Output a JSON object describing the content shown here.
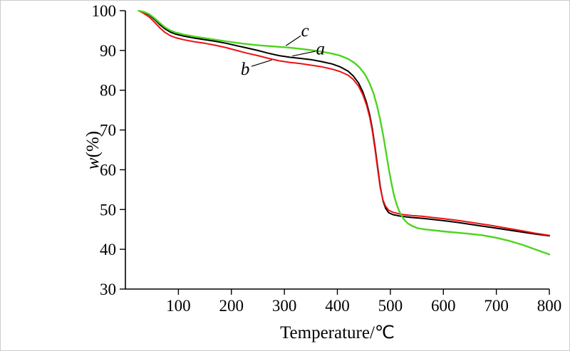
{
  "figure": {
    "background": "#ffffff",
    "border_color": "#cccccc"
  },
  "chart_data": {
    "type": "line",
    "title": "",
    "xlabel": "Temperature/℃",
    "ylabel_italic": "w",
    "ylabel_rest": "(%)",
    "xlim": [
      0,
      800
    ],
    "ylim": [
      30,
      100
    ],
    "xticks": [
      100,
      200,
      300,
      400,
      500,
      600,
      700,
      800
    ],
    "yticks": [
      30,
      40,
      50,
      60,
      70,
      80,
      90,
      100
    ],
    "grid": false,
    "legend_position": "inline-annotations",
    "axis_color": "#000000",
    "series": [
      {
        "name": "a",
        "color": "#000000",
        "width": 2,
        "points": [
          [
            25,
            100
          ],
          [
            35,
            99.6
          ],
          [
            45,
            98.9
          ],
          [
            55,
            97.8
          ],
          [
            65,
            96.5
          ],
          [
            75,
            95.4
          ],
          [
            85,
            94.6
          ],
          [
            95,
            94.1
          ],
          [
            110,
            93.6
          ],
          [
            130,
            93.1
          ],
          [
            150,
            92.7
          ],
          [
            170,
            92.3
          ],
          [
            190,
            91.8
          ],
          [
            210,
            91.2
          ],
          [
            230,
            90.6
          ],
          [
            250,
            90.0
          ],
          [
            270,
            89.3
          ],
          [
            290,
            88.7
          ],
          [
            310,
            88.3
          ],
          [
            330,
            88.0
          ],
          [
            350,
            87.7
          ],
          [
            370,
            87.2
          ],
          [
            390,
            86.6
          ],
          [
            405,
            85.9
          ],
          [
            420,
            84.8
          ],
          [
            430,
            83.6
          ],
          [
            440,
            81.8
          ],
          [
            448,
            79.6
          ],
          [
            455,
            76.9
          ],
          [
            461,
            73.8
          ],
          [
            466,
            70.3
          ],
          [
            471,
            65.8
          ],
          [
            476,
            60.8
          ],
          [
            481,
            55.8
          ],
          [
            486,
            52.2
          ],
          [
            491,
            50.3
          ],
          [
            497,
            49.2
          ],
          [
            505,
            48.7
          ],
          [
            520,
            48.3
          ],
          [
            540,
            48.0
          ],
          [
            560,
            47.8
          ],
          [
            580,
            47.5
          ],
          [
            600,
            47.2
          ],
          [
            630,
            46.7
          ],
          [
            660,
            46.1
          ],
          [
            690,
            45.5
          ],
          [
            720,
            44.9
          ],
          [
            750,
            44.3
          ],
          [
            775,
            43.8
          ],
          [
            800,
            43.4
          ]
        ]
      },
      {
        "name": "b",
        "color": "#ee1111",
        "width": 2,
        "points": [
          [
            25,
            100
          ],
          [
            35,
            99.3
          ],
          [
            45,
            98.4
          ],
          [
            55,
            97.1
          ],
          [
            65,
            95.7
          ],
          [
            75,
            94.5
          ],
          [
            85,
            93.7
          ],
          [
            95,
            93.2
          ],
          [
            110,
            92.7
          ],
          [
            130,
            92.2
          ],
          [
            150,
            91.8
          ],
          [
            170,
            91.3
          ],
          [
            190,
            90.7
          ],
          [
            210,
            90.0
          ],
          [
            230,
            89.3
          ],
          [
            250,
            88.7
          ],
          [
            270,
            88.0
          ],
          [
            290,
            87.4
          ],
          [
            310,
            87.0
          ],
          [
            330,
            86.7
          ],
          [
            350,
            86.3
          ],
          [
            370,
            85.9
          ],
          [
            390,
            85.3
          ],
          [
            405,
            84.7
          ],
          [
            420,
            83.8
          ],
          [
            430,
            82.7
          ],
          [
            440,
            81.0
          ],
          [
            448,
            78.9
          ],
          [
            455,
            76.3
          ],
          [
            461,
            73.2
          ],
          [
            466,
            69.7
          ],
          [
            471,
            65.2
          ],
          [
            476,
            60.2
          ],
          [
            481,
            55.4
          ],
          [
            486,
            52.4
          ],
          [
            491,
            50.8
          ],
          [
            497,
            49.8
          ],
          [
            505,
            49.3
          ],
          [
            520,
            48.8
          ],
          [
            540,
            48.5
          ],
          [
            560,
            48.3
          ],
          [
            580,
            48.0
          ],
          [
            600,
            47.7
          ],
          [
            630,
            47.2
          ],
          [
            660,
            46.6
          ],
          [
            690,
            46.0
          ],
          [
            720,
            45.3
          ],
          [
            750,
            44.6
          ],
          [
            775,
            44.0
          ],
          [
            800,
            43.5
          ]
        ]
      },
      {
        "name": "c",
        "color": "#4cd41e",
        "width": 2.4,
        "points": [
          [
            25,
            100
          ],
          [
            35,
            99.7
          ],
          [
            45,
            99.1
          ],
          [
            55,
            98.1
          ],
          [
            65,
            96.9
          ],
          [
            75,
            95.8
          ],
          [
            85,
            95.0
          ],
          [
            95,
            94.5
          ],
          [
            110,
            94.0
          ],
          [
            130,
            93.5
          ],
          [
            150,
            93.1
          ],
          [
            170,
            92.7
          ],
          [
            190,
            92.3
          ],
          [
            210,
            91.9
          ],
          [
            230,
            91.6
          ],
          [
            250,
            91.3
          ],
          [
            270,
            91.1
          ],
          [
            290,
            90.9
          ],
          [
            310,
            90.7
          ],
          [
            330,
            90.4
          ],
          [
            350,
            90.1
          ],
          [
            370,
            89.7
          ],
          [
            390,
            89.2
          ],
          [
            405,
            88.7
          ],
          [
            420,
            87.9
          ],
          [
            432,
            86.9
          ],
          [
            442,
            85.7
          ],
          [
            452,
            84.0
          ],
          [
            460,
            82.0
          ],
          [
            468,
            79.3
          ],
          [
            475,
            76.0
          ],
          [
            481,
            72.5
          ],
          [
            487,
            68.3
          ],
          [
            492,
            64.3
          ],
          [
            497,
            60.3
          ],
          [
            502,
            56.6
          ],
          [
            507,
            53.5
          ],
          [
            512,
            51.2
          ],
          [
            518,
            49.2
          ],
          [
            525,
            47.6
          ],
          [
            533,
            46.5
          ],
          [
            542,
            45.8
          ],
          [
            552,
            45.3
          ],
          [
            565,
            45.0
          ],
          [
            580,
            44.8
          ],
          [
            600,
            44.5
          ],
          [
            625,
            44.2
          ],
          [
            650,
            43.9
          ],
          [
            675,
            43.5
          ],
          [
            700,
            42.9
          ],
          [
            725,
            42.1
          ],
          [
            750,
            41.1
          ],
          [
            775,
            39.9
          ],
          [
            800,
            38.7
          ]
        ]
      }
    ],
    "annotations": [
      {
        "label": "c",
        "x": 339,
        "y": 95.0,
        "line": [
          [
            331,
            93.7
          ],
          [
            303,
            91.2
          ]
        ]
      },
      {
        "label": "a",
        "x": 368,
        "y": 90.4,
        "line": [
          [
            359,
            89.8
          ],
          [
            315,
            88.6
          ]
        ]
      },
      {
        "label": "b",
        "x": 226,
        "y": 85.3,
        "line": [
          [
            238,
            86.0
          ],
          [
            276,
            87.6
          ]
        ]
      }
    ]
  }
}
